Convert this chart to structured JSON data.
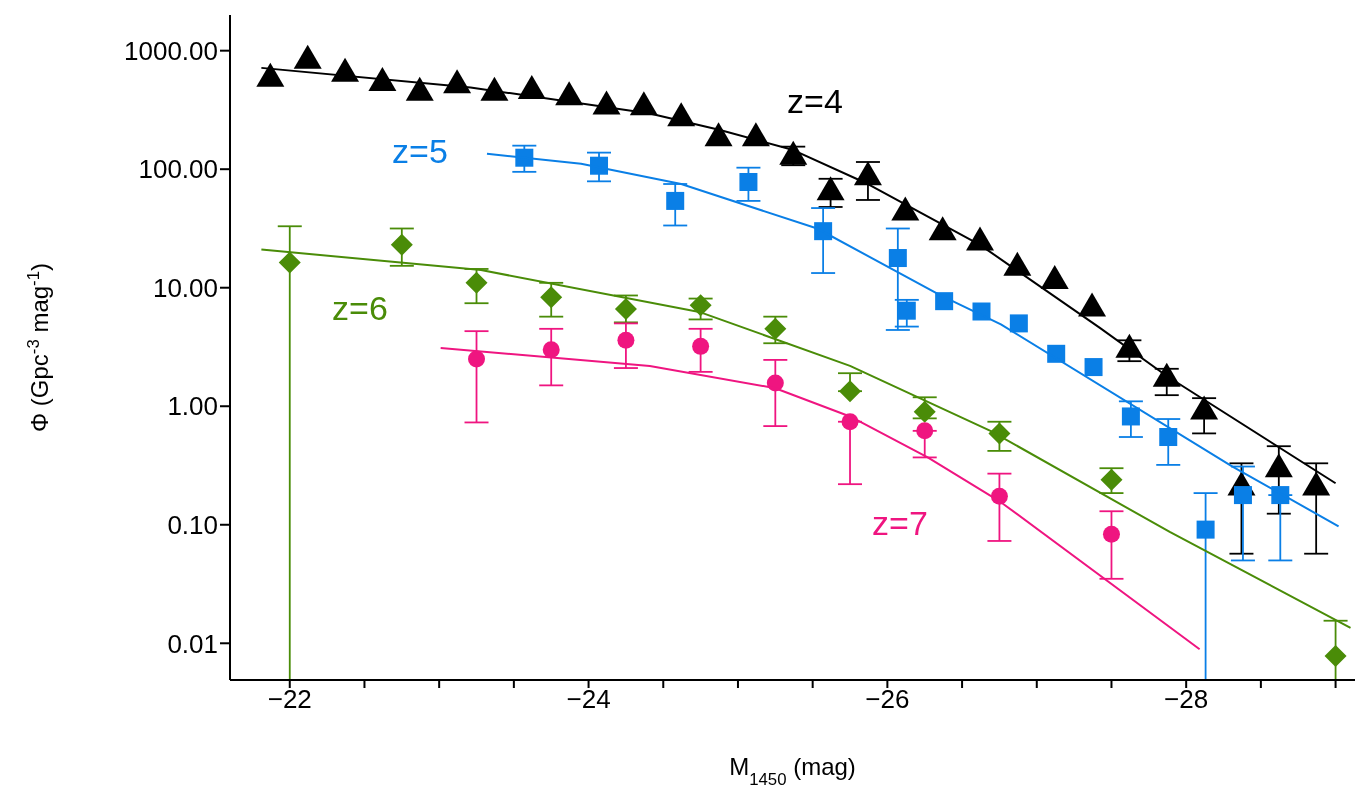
{
  "chart_data": {
    "type": "scatter",
    "xlabel": "M$_{1450}$ (mag)",
    "ylabel": "Φ (Gpc$^{-3}$ mag$^{-1}$)",
    "log": "y",
    "grid": false,
    "legend": false,
    "xlim": [
      -21.6,
      -29.13
    ],
    "xticks": [
      {
        "value": -22,
        "label": "−22"
      },
      {
        "value": -22.5,
        "label": null
      },
      {
        "value": -23,
        "label": null
      },
      {
        "value": -23.5,
        "label": null
      },
      {
        "value": -24,
        "label": "−24"
      },
      {
        "value": -24.5,
        "label": null
      },
      {
        "value": -25,
        "label": null
      },
      {
        "value": -25.5,
        "label": null
      },
      {
        "value": -26,
        "label": "−26"
      },
      {
        "value": -26.5,
        "label": null
      },
      {
        "value": -27,
        "label": null
      },
      {
        "value": -27.5,
        "label": null
      },
      {
        "value": -28,
        "label": "−28"
      },
      {
        "value": -28.5,
        "label": null
      },
      {
        "value": -29,
        "label": null
      }
    ],
    "ylim": [
      0.0049,
      2000
    ],
    "yticks": [
      {
        "value": 1000,
        "label": "1000.00"
      },
      {
        "value": 100,
        "label": "100.00"
      },
      {
        "value": 10,
        "label": "10.00"
      },
      {
        "value": 1,
        "label": "1.00"
      },
      {
        "value": 0.1,
        "label": "0.10"
      },
      {
        "value": 0.01,
        "label": "0.01"
      }
    ],
    "annotations": [
      "z=4",
      "z=5",
      "z=6",
      "z=7"
    ],
    "series": [
      {
        "marker": "triangle",
        "color": "#000000",
        "x": [
          -21.87,
          -22.12,
          -22.37,
          -22.62,
          -22.87,
          -23.12,
          -23.37,
          -23.62,
          -23.87,
          -24.12,
          -24.37,
          -24.62,
          -24.87,
          -25.12,
          -25.37,
          -25.62,
          -25.87,
          -26.12,
          -26.37,
          -26.62,
          -26.87,
          -27.12,
          -27.37,
          -27.62,
          -27.87,
          -28.12,
          -28.37,
          -28.62,
          -28.87
        ],
        "values": [
          590,
          840,
          650,
          545,
          450,
          520,
          450,
          465,
          413,
          345,
          340,
          275,
          186,
          186,
          130,
          65,
          87,
          44,
          30,
          24.6,
          15,
          11.6,
          6.8,
          3.05,
          1.74,
          0.92,
          0.21,
          0.3,
          0.21
        ],
        "errors": [
          null,
          null,
          null,
          null,
          null,
          null,
          null,
          null,
          null,
          null,
          null,
          null,
          null,
          null,
          [
            108,
            155
          ],
          [
            48,
            83
          ],
          [
            55,
            115
          ],
          null,
          null,
          null,
          null,
          null,
          null,
          [
            2.4,
            3.6
          ],
          [
            1.24,
            2.07
          ],
          [
            0.59,
            1.17
          ],
          [
            0.057,
            0.33
          ],
          [
            0.124,
            0.46
          ],
          [
            0.057,
            0.33
          ]
        ]
      },
      {
        "marker": "square",
        "color": "#0a7fe6",
        "x": [
          -23.57,
          -24.07,
          -24.58,
          -25.07,
          -25.57,
          -26.07,
          -26.13,
          -26.38,
          -26.63,
          -26.88,
          -27.13,
          -27.38,
          -27.63,
          -27.88,
          -28.13,
          -28.38,
          -28.63
        ],
        "values": [
          125,
          107,
          54,
          78,
          30,
          17.8,
          6.4,
          7.7,
          6.3,
          5,
          2.77,
          2.14,
          0.82,
          0.55,
          0.091,
          0.178,
          0.178
        ],
        "errors": [
          [
            95,
            158
          ],
          [
            79,
            138
          ],
          [
            33.5,
            75
          ],
          [
            54,
            103
          ],
          [
            13.3,
            47
          ],
          [
            4.4,
            31.6
          ],
          [
            4.7,
            7.9
          ],
          null,
          null,
          null,
          null,
          null,
          [
            0.55,
            1.1
          ],
          [
            0.32,
            0.78
          ],
          [
            0.0049,
            0.185
          ],
          [
            0.05,
            0.31
          ],
          [
            0.05,
            0.178
          ]
        ]
      },
      {
        "marker": "diamond",
        "color": "#4a8c08",
        "x": [
          -22,
          -22.75,
          -23.25,
          -23.75,
          -24.25,
          -24.75,
          -25.25,
          -25.75,
          -26.25,
          -26.75,
          -27.5,
          -29
        ],
        "values": [
          16.3,
          23,
          11,
          8.3,
          6.6,
          7.1,
          4.5,
          1.34,
          0.9,
          0.59,
          0.24,
          0.0078
        ],
        "errors": [
          [
            0.0049,
            33
          ],
          [
            15.3,
            31.6
          ],
          [
            7.4,
            14.4
          ],
          [
            5.7,
            11
          ],
          [
            5.1,
            8.6
          ],
          [
            5.4,
            8.1
          ],
          [
            3.4,
            5.7
          ],
          [
            1.34,
            1.9
          ],
          [
            0.79,
            1.19
          ],
          [
            0.42,
            0.74
          ],
          [
            0.185,
            0.3
          ],
          [
            0.0049,
            0.0155
          ]
        ]
      },
      {
        "marker": "circle",
        "color": "#ef1580",
        "x": [
          -23.25,
          -23.75,
          -24.25,
          -24.75,
          -25.25,
          -25.75,
          -26.25,
          -26.75,
          -27.5
        ],
        "values": [
          2.5,
          3,
          3.6,
          3.2,
          1.57,
          0.74,
          0.62,
          0.174,
          0.083
        ],
        "errors": [
          [
            0.73,
            4.3
          ],
          [
            1.5,
            4.5
          ],
          [
            2.1,
            5
          ],
          [
            1.95,
            4.5
          ],
          [
            0.68,
            2.46
          ],
          [
            0.22,
            0.74
          ],
          [
            0.37,
            0.62
          ],
          [
            0.073,
            0.27
          ],
          [
            0.035,
            0.13
          ]
        ]
      },
      {
        "type": "line",
        "marker": "none",
        "color": "#000000",
        "x": [
          -21.81,
          -23.21,
          -24.41,
          -24.88,
          -25.37,
          -25.87,
          -26.62,
          -27.42,
          -27.87,
          -29.0
        ],
        "values": [
          716,
          490,
          295,
          214,
          145,
          75,
          23,
          4.6,
          1.8,
          0.224
        ]
      },
      {
        "type": "line",
        "marker": "none",
        "color": "#0a7fe6",
        "x": [
          -23.32,
          -23.95,
          -24.62,
          -25.53,
          -26.35,
          -26.76,
          -28.31,
          -29.02
        ],
        "values": [
          135,
          111,
          75,
          31.6,
          8.7,
          4.9,
          0.31,
          0.097
        ]
      },
      {
        "type": "line",
        "marker": "none",
        "color": "#4a8c08",
        "x": [
          -21.81,
          -23.28,
          -24.75,
          -25.75,
          -26.69,
          -27.89,
          -29.1
        ],
        "values": [
          21,
          14.1,
          6.2,
          2.19,
          0.62,
          0.087,
          0.0135
        ]
      },
      {
        "type": "line",
        "marker": "none",
        "color": "#ef1580",
        "x": [
          -23.01,
          -24.41,
          -25.25,
          -25.75,
          -26.27,
          -26.76,
          -28.09
        ],
        "values": [
          3.1,
          2.19,
          1.42,
          0.82,
          0.37,
          0.155,
          0.0089
        ]
      }
    ]
  }
}
